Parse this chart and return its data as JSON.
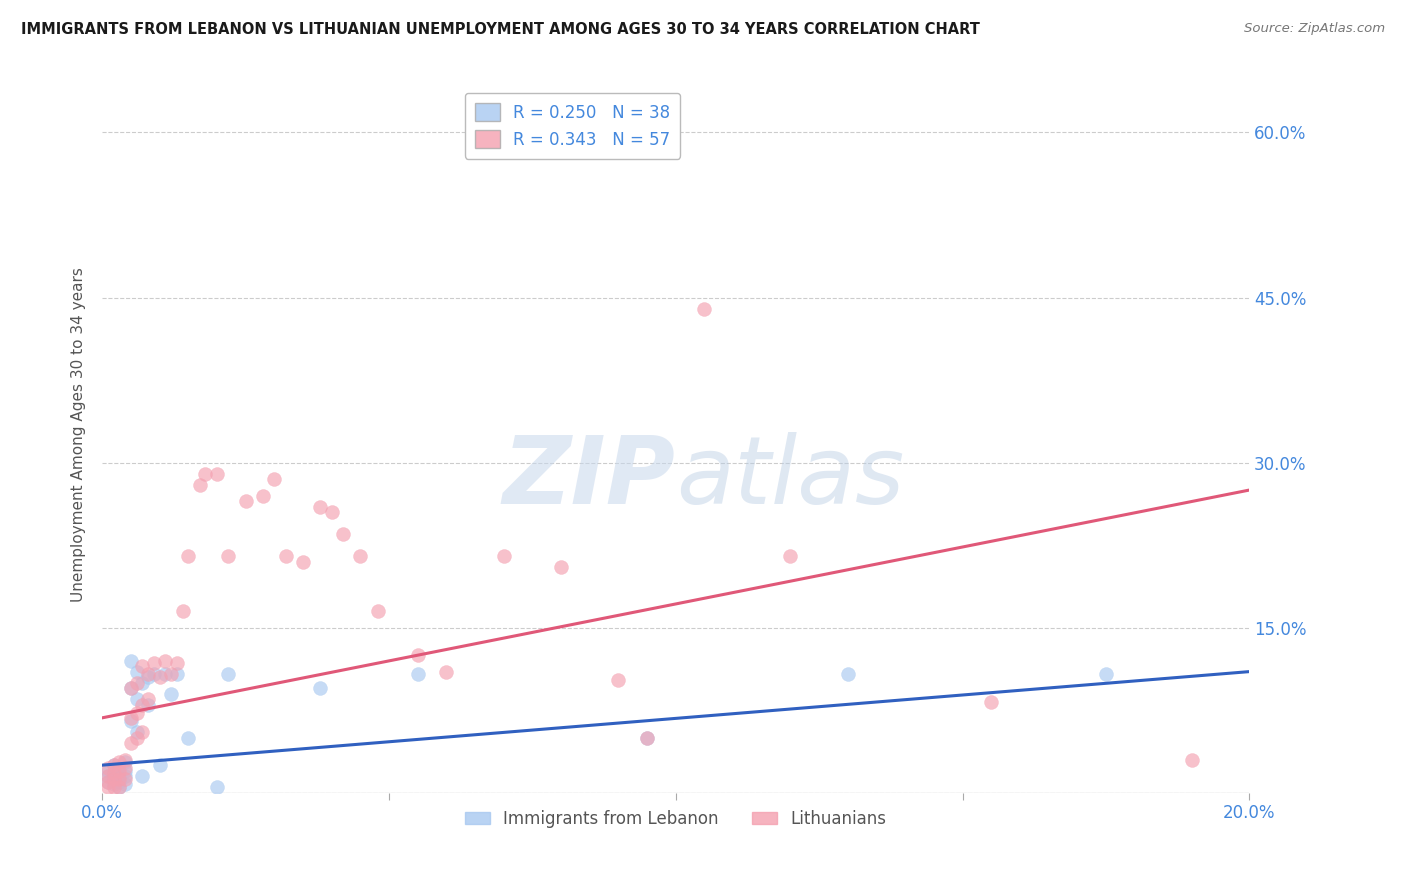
{
  "title": "IMMIGRANTS FROM LEBANON VS LITHUANIAN UNEMPLOYMENT AMONG AGES 30 TO 34 YEARS CORRELATION CHART",
  "source": "Source: ZipAtlas.com",
  "ylabel": "Unemployment Among Ages 30 to 34 years",
  "xlim": [
    0.0,
    0.2
  ],
  "ylim": [
    0.0,
    0.65
  ],
  "xticks": [
    0.0,
    0.05,
    0.1,
    0.15,
    0.2
  ],
  "xticklabels": [
    "0.0%",
    "",
    "",
    "",
    "20.0%"
  ],
  "ytick_positions": [
    0.0,
    0.15,
    0.3,
    0.45,
    0.6
  ],
  "yticklabels_right": [
    "",
    "15.0%",
    "30.0%",
    "45.0%",
    "60.0%"
  ],
  "legend_entries": [
    {
      "label": "R = 0.250   N = 38",
      "color": "#a8c8f0"
    },
    {
      "label": "R = 0.343   N = 57",
      "color": "#f4a0b0"
    }
  ],
  "blue_color": "#a8c8f0",
  "pink_color": "#f4a0b0",
  "blue_line_color": "#3060c0",
  "pink_line_color": "#e05878",
  "title_color": "#1a1a1a",
  "axis_label_color": "#555555",
  "tick_label_color": "#4488dd",
  "grid_color": "#cccccc",
  "background_color": "#ffffff",
  "watermark_color": "#dce8f5",
  "blue_points_x": [
    0.001,
    0.001,
    0.001,
    0.002,
    0.002,
    0.002,
    0.002,
    0.003,
    0.003,
    0.003,
    0.003,
    0.004,
    0.004,
    0.004,
    0.004,
    0.005,
    0.005,
    0.005,
    0.006,
    0.006,
    0.006,
    0.007,
    0.007,
    0.008,
    0.008,
    0.009,
    0.01,
    0.011,
    0.012,
    0.013,
    0.015,
    0.02,
    0.022,
    0.038,
    0.055,
    0.095,
    0.13,
    0.175
  ],
  "blue_points_y": [
    0.02,
    0.015,
    0.01,
    0.025,
    0.018,
    0.012,
    0.008,
    0.022,
    0.015,
    0.01,
    0.005,
    0.028,
    0.02,
    0.015,
    0.008,
    0.12,
    0.095,
    0.065,
    0.11,
    0.085,
    0.055,
    0.1,
    0.015,
    0.105,
    0.08,
    0.108,
    0.025,
    0.108,
    0.09,
    0.108,
    0.05,
    0.005,
    0.108,
    0.095,
    0.108,
    0.05,
    0.108,
    0.108
  ],
  "pink_points_x": [
    0.001,
    0.001,
    0.001,
    0.001,
    0.002,
    0.002,
    0.002,
    0.002,
    0.003,
    0.003,
    0.003,
    0.003,
    0.004,
    0.004,
    0.004,
    0.005,
    0.005,
    0.005,
    0.006,
    0.006,
    0.006,
    0.007,
    0.007,
    0.007,
    0.008,
    0.008,
    0.009,
    0.01,
    0.011,
    0.012,
    0.013,
    0.014,
    0.015,
    0.017,
    0.018,
    0.02,
    0.022,
    0.025,
    0.028,
    0.03,
    0.032,
    0.035,
    0.038,
    0.04,
    0.042,
    0.045,
    0.048,
    0.055,
    0.06,
    0.07,
    0.08,
    0.09,
    0.095,
    0.105,
    0.12,
    0.155,
    0.19
  ],
  "pink_points_y": [
    0.022,
    0.015,
    0.01,
    0.005,
    0.025,
    0.018,
    0.012,
    0.005,
    0.028,
    0.02,
    0.012,
    0.005,
    0.03,
    0.022,
    0.012,
    0.095,
    0.068,
    0.045,
    0.1,
    0.072,
    0.05,
    0.115,
    0.08,
    0.055,
    0.108,
    0.085,
    0.118,
    0.105,
    0.12,
    0.108,
    0.118,
    0.165,
    0.215,
    0.28,
    0.29,
    0.29,
    0.215,
    0.265,
    0.27,
    0.285,
    0.215,
    0.21,
    0.26,
    0.255,
    0.235,
    0.215,
    0.165,
    0.125,
    0.11,
    0.215,
    0.205,
    0.102,
    0.05,
    0.44,
    0.215,
    0.082,
    0.03
  ],
  "blue_line_x": [
    0.0,
    0.2
  ],
  "blue_line_y": [
    0.025,
    0.11
  ],
  "pink_line_x": [
    0.0,
    0.2
  ],
  "pink_line_y": [
    0.068,
    0.275
  ]
}
